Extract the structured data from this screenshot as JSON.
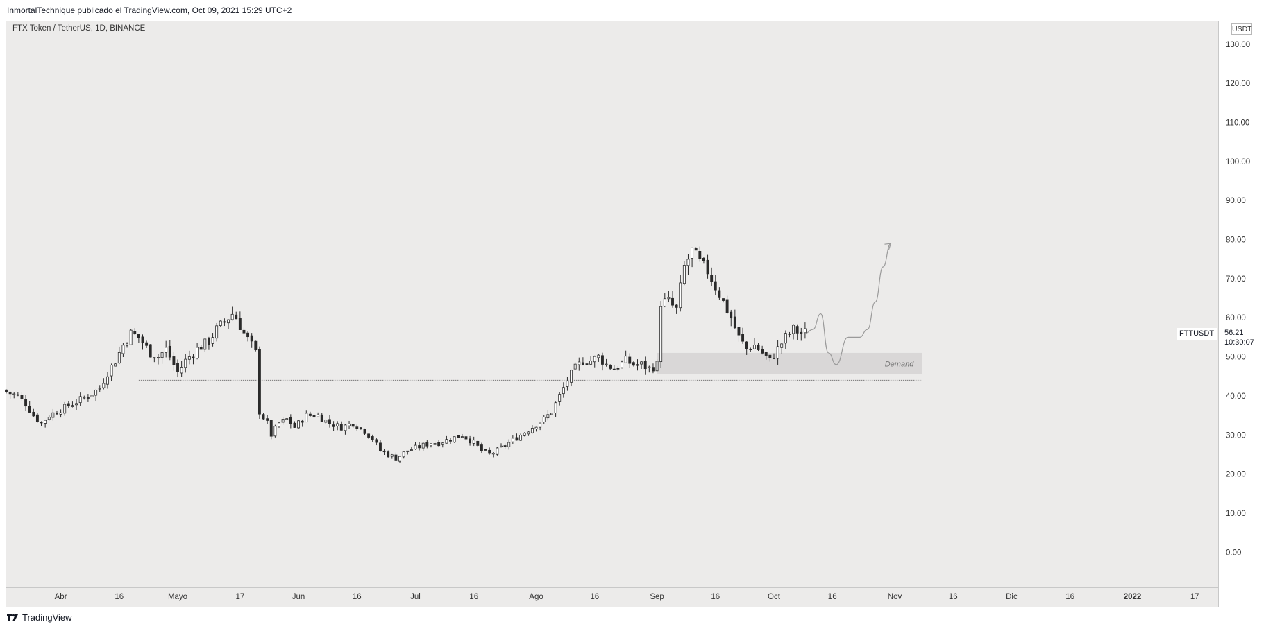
{
  "header": {
    "publisher": "InmortalTechnique publicado el TradingView.com, Oct 09, 2021 15:29 UTC+2"
  },
  "symbol_title": "FTX Token / TetherUS, 1D, BINANCE",
  "currency": "USDT",
  "symbol_tag": "FTTUSDT",
  "last_price": "56.21",
  "countdown": "10:30:07",
  "footer": {
    "brand": "TradingView",
    "logo_icon": "tradingview-logo-icon"
  },
  "chart_data": {
    "type": "candlestick",
    "title": "",
    "ylim": [
      -9,
      136
    ],
    "yticks": [
      0,
      10,
      20,
      30,
      40,
      50,
      60,
      70,
      80,
      90,
      100,
      110,
      120,
      130
    ],
    "ytick_labels": [
      "0.00",
      "10.00",
      "20.00",
      "30.00",
      "40.00",
      "50.00",
      "60.00",
      "70.00",
      "80.00",
      "90.00",
      "100.00",
      "110.00",
      "120.00",
      "130.00"
    ],
    "x_start": "2021-03-18",
    "x_end": "2022-01-23",
    "xticks": [
      {
        "date": "2021-04-01",
        "label": "Abr"
      },
      {
        "date": "2021-04-16",
        "label": "16"
      },
      {
        "date": "2021-05-01",
        "label": "Mayo"
      },
      {
        "date": "2021-05-17",
        "label": "17"
      },
      {
        "date": "2021-06-01",
        "label": "Jun"
      },
      {
        "date": "2021-06-16",
        "label": "16"
      },
      {
        "date": "2021-07-01",
        "label": "Jul"
      },
      {
        "date": "2021-07-16",
        "label": "16"
      },
      {
        "date": "2021-08-01",
        "label": "Ago"
      },
      {
        "date": "2021-08-16",
        "label": "16"
      },
      {
        "date": "2021-09-01",
        "label": "Sep"
      },
      {
        "date": "2021-09-16",
        "label": "16"
      },
      {
        "date": "2021-10-01",
        "label": "Oct"
      },
      {
        "date": "2021-10-16",
        "label": "16"
      },
      {
        "date": "2021-11-01",
        "label": "Nov"
      },
      {
        "date": "2021-11-16",
        "label": "16"
      },
      {
        "date": "2021-12-01",
        "label": "Dic"
      },
      {
        "date": "2021-12-16",
        "label": "16"
      },
      {
        "date": "2022-01-01",
        "label": "2022"
      },
      {
        "date": "2022-01-17",
        "label": "17"
      }
    ],
    "close_anchors": [
      [
        "2021-03-18",
        41
      ],
      [
        "2021-03-21",
        40
      ],
      [
        "2021-03-23",
        38
      ],
      [
        "2021-03-25",
        35
      ],
      [
        "2021-03-27",
        33
      ],
      [
        "2021-03-29",
        35
      ],
      [
        "2021-04-02",
        37
      ],
      [
        "2021-04-06",
        39
      ],
      [
        "2021-04-08",
        40
      ],
      [
        "2021-04-11",
        42
      ],
      [
        "2021-04-13",
        46
      ],
      [
        "2021-04-15",
        49
      ],
      [
        "2021-04-17",
        53
      ],
      [
        "2021-04-19",
        56
      ],
      [
        "2021-04-21",
        55
      ],
      [
        "2021-04-24",
        51
      ],
      [
        "2021-04-26",
        50
      ],
      [
        "2021-04-28",
        52
      ],
      [
        "2021-05-01",
        46
      ],
      [
        "2021-05-03",
        49
      ],
      [
        "2021-05-06",
        52
      ],
      [
        "2021-05-09",
        54
      ],
      [
        "2021-05-11",
        57
      ],
      [
        "2021-05-13",
        59
      ],
      [
        "2021-05-15",
        61
      ],
      [
        "2021-05-16",
        60
      ],
      [
        "2021-05-18",
        56
      ],
      [
        "2021-05-20",
        53
      ],
      [
        "2021-05-21",
        51
      ],
      [
        "2021-05-22",
        36
      ],
      [
        "2021-05-24",
        33
      ],
      [
        "2021-05-25",
        30
      ],
      [
        "2021-05-27",
        33
      ],
      [
        "2021-05-29",
        34
      ],
      [
        "2021-05-31",
        32
      ],
      [
        "2021-06-03",
        35
      ],
      [
        "2021-06-06",
        35
      ],
      [
        "2021-06-09",
        33
      ],
      [
        "2021-06-12",
        32
      ],
      [
        "2021-06-15",
        33
      ],
      [
        "2021-06-18",
        31
      ],
      [
        "2021-06-20",
        29
      ],
      [
        "2021-06-22",
        26
      ],
      [
        "2021-06-24",
        25
      ],
      [
        "2021-06-26",
        24
      ],
      [
        "2021-06-29",
        26
      ],
      [
        "2021-07-02",
        27
      ],
      [
        "2021-07-05",
        28
      ],
      [
        "2021-07-07",
        28
      ],
      [
        "2021-07-10",
        29
      ],
      [
        "2021-07-13",
        30
      ],
      [
        "2021-07-16",
        28
      ],
      [
        "2021-07-18",
        26
      ],
      [
        "2021-07-20",
        25
      ],
      [
        "2021-07-22",
        26
      ],
      [
        "2021-07-25",
        28
      ],
      [
        "2021-07-28",
        30
      ],
      [
        "2021-07-31",
        32
      ],
      [
        "2021-08-03",
        34
      ],
      [
        "2021-08-05",
        36
      ],
      [
        "2021-08-07",
        40
      ],
      [
        "2021-08-09",
        44
      ],
      [
        "2021-08-11",
        47
      ],
      [
        "2021-08-13",
        49
      ],
      [
        "2021-08-15",
        49
      ],
      [
        "2021-08-17",
        50
      ],
      [
        "2021-08-19",
        48
      ],
      [
        "2021-08-21",
        47
      ],
      [
        "2021-08-24",
        49
      ],
      [
        "2021-08-26",
        48
      ],
      [
        "2021-08-28",
        48
      ],
      [
        "2021-08-30",
        47
      ],
      [
        "2021-09-01",
        48
      ],
      [
        "2021-09-02",
        64
      ],
      [
        "2021-09-04",
        64
      ],
      [
        "2021-09-06",
        62
      ],
      [
        "2021-09-08",
        73
      ],
      [
        "2021-09-10",
        77
      ],
      [
        "2021-09-12",
        74
      ],
      [
        "2021-09-14",
        72
      ],
      [
        "2021-09-16",
        68
      ],
      [
        "2021-09-18",
        64
      ],
      [
        "2021-09-20",
        60
      ],
      [
        "2021-09-22",
        55
      ],
      [
        "2021-09-24",
        52
      ],
      [
        "2021-09-26",
        53
      ],
      [
        "2021-09-28",
        51
      ],
      [
        "2021-09-30",
        49
      ],
      [
        "2021-10-02",
        52
      ],
      [
        "2021-10-04",
        55
      ],
      [
        "2021-10-06",
        57
      ],
      [
        "2021-10-08",
        56
      ],
      [
        "2021-10-09",
        56.21
      ]
    ],
    "demand_zone": {
      "label": "Demand",
      "from": "2021-09-01",
      "to": "2021-11-08",
      "low": 45.5,
      "high": 51
    },
    "support_line": {
      "price": 44,
      "from": "2021-04-21",
      "to": "2021-11-08"
    },
    "projection_path": [
      [
        "2021-10-09",
        56
      ],
      [
        "2021-10-11",
        57
      ],
      [
        "2021-10-13",
        61
      ],
      [
        "2021-10-15",
        51
      ],
      [
        "2021-10-17",
        48
      ],
      [
        "2021-10-20",
        55
      ],
      [
        "2021-10-23",
        55
      ],
      [
        "2021-10-25",
        57
      ],
      [
        "2021-10-27",
        64
      ],
      [
        "2021-10-29",
        73
      ],
      [
        "2021-10-31",
        79
      ]
    ]
  }
}
